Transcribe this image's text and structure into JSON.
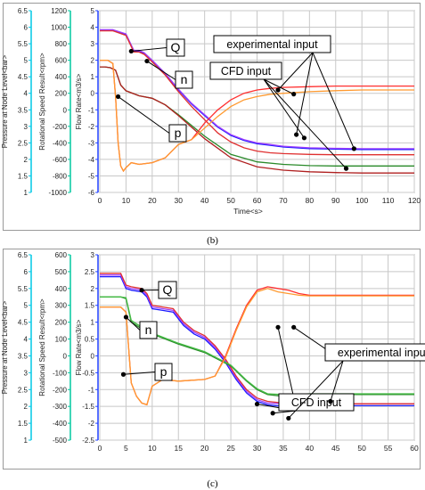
{
  "captions": {
    "b": "(b)",
    "c": "(c)"
  },
  "chart_data": [
    {
      "type": "line",
      "panel": "b",
      "xlabel": "Time<s>",
      "xlim": [
        0,
        120
      ],
      "xticks": [
        0,
        10,
        20,
        30,
        40,
        50,
        60,
        70,
        80,
        90,
        100,
        110,
        120
      ],
      "axes": [
        {
          "label": "Pressure at Node Level<bar>",
          "color": "#00c8e6",
          "range": [
            1,
            6.5
          ],
          "ticks": [
            "6.5",
            "6",
            "5.5",
            "5",
            "4.5",
            "4",
            "3.5",
            "3",
            "2.5",
            "2",
            "1.5",
            "1"
          ]
        },
        {
          "label": "Rotational Speed Result<rpm>",
          "color": "#00c8a0",
          "range": [
            -1000,
            1200
          ],
          "ticks": [
            "1200",
            "1000",
            "800",
            "600",
            "400",
            "200",
            "0",
            "-200",
            "-400",
            "-600",
            "-800",
            "-1000"
          ]
        },
        {
          "label": "Flow Rate<m3/s>",
          "color": "#2040ff",
          "range": [
            -6,
            5
          ],
          "ticks": [
            "5",
            "4",
            "3",
            "2",
            "1",
            "0",
            "-1",
            "-2",
            "-3",
            "-4",
            "-5",
            "-6"
          ]
        }
      ],
      "series": [
        {
          "color": "#1a1aff",
          "axis": 2,
          "x": [
            0,
            5,
            10,
            13,
            15,
            17,
            20,
            25,
            30,
            35,
            40,
            45,
            50,
            55,
            60,
            65,
            70,
            80,
            90,
            100,
            110,
            120
          ],
          "y": [
            3.8,
            3.8,
            3.55,
            2.55,
            2.55,
            2.4,
            1.95,
            1.15,
            0.2,
            -0.65,
            -1.35,
            -2.05,
            -2.55,
            -2.85,
            -3.05,
            -3.15,
            -3.25,
            -3.35,
            -3.38,
            -3.4,
            -3.4,
            -3.4
          ]
        },
        {
          "color": "#a040ff",
          "axis": 2,
          "x": [
            0,
            5,
            10,
            13,
            15,
            17,
            20,
            25,
            30,
            35,
            40,
            45,
            50,
            55,
            60,
            65,
            70,
            80,
            90,
            100,
            110,
            120
          ],
          "y": [
            3.85,
            3.85,
            3.6,
            2.6,
            2.6,
            2.45,
            2.0,
            1.2,
            0.25,
            -0.6,
            -1.3,
            -2.0,
            -2.5,
            -2.8,
            -3.0,
            -3.1,
            -3.2,
            -3.3,
            -3.33,
            -3.35,
            -3.35,
            -3.35
          ]
        },
        {
          "color": "#e03030",
          "axis": 2,
          "x": [
            0,
            5,
            10,
            13,
            15,
            17,
            20,
            25,
            30,
            35,
            40,
            45,
            50,
            55,
            60,
            65,
            70,
            80,
            90,
            100,
            110,
            120
          ],
          "y": [
            3.78,
            3.78,
            3.5,
            2.5,
            2.5,
            2.35,
            1.9,
            1.1,
            0.1,
            -0.8,
            -1.6,
            -2.4,
            -2.95,
            -3.3,
            -3.5,
            -3.6,
            -3.65,
            -3.7,
            -3.72,
            -3.72,
            -3.72,
            -3.72
          ]
        },
        {
          "color": "#2a8a2a",
          "axis": 1,
          "x": [
            0,
            2,
            4,
            6,
            8,
            10,
            15,
            20,
            25,
            30,
            40,
            50,
            60,
            70,
            80,
            90,
            100,
            110,
            120
          ],
          "y": [
            520,
            520,
            510,
            480,
            300,
            230,
            170,
            140,
            60,
            -60,
            -320,
            -540,
            -630,
            -660,
            -675,
            -680,
            -680,
            -680,
            -680
          ]
        },
        {
          "color": "#b02020",
          "axis": 1,
          "x": [
            0,
            2,
            4,
            6,
            8,
            10,
            15,
            20,
            25,
            30,
            40,
            50,
            60,
            70,
            80,
            90,
            100,
            110,
            120
          ],
          "y": [
            520,
            520,
            510,
            480,
            300,
            230,
            170,
            140,
            60,
            -70,
            -350,
            -580,
            -690,
            -730,
            -750,
            -760,
            -765,
            -765,
            -765
          ]
        },
        {
          "color": "#ff3030",
          "axis": 0,
          "x": [
            0,
            3,
            5,
            6,
            7,
            8,
            9,
            10,
            12,
            15,
            20,
            25,
            30,
            35,
            40,
            45,
            50,
            55,
            60,
            65,
            70,
            80,
            90,
            100,
            110,
            120
          ],
          "y": [
            5.0,
            5.0,
            4.9,
            3.9,
            2.5,
            1.8,
            1.65,
            1.75,
            1.9,
            1.85,
            1.9,
            2.05,
            2.45,
            2.6,
            3.1,
            3.5,
            3.8,
            4.0,
            4.1,
            4.15,
            4.18,
            4.2,
            4.22,
            4.22,
            4.22,
            4.22
          ]
        },
        {
          "color": "#ff9a30",
          "axis": 0,
          "x": [
            0,
            3,
            5,
            6,
            7,
            8,
            9,
            10,
            12,
            15,
            20,
            25,
            30,
            35,
            40,
            45,
            50,
            55,
            60,
            65,
            70,
            80,
            90,
            100,
            110,
            120
          ],
          "y": [
            5.0,
            5.0,
            4.9,
            3.9,
            2.5,
            1.8,
            1.65,
            1.75,
            1.9,
            1.85,
            1.9,
            2.05,
            2.45,
            2.6,
            2.95,
            3.3,
            3.6,
            3.8,
            3.9,
            3.97,
            4.0,
            4.05,
            4.08,
            4.1,
            4.1,
            4.1
          ]
        }
      ],
      "annotations": [
        {
          "text": "Q",
          "anchor": [
            12,
            2.55
          ]
        },
        {
          "text": "n",
          "anchor": [
            18,
            1.95
          ]
        },
        {
          "text": "p",
          "anchor": [
            7,
            -0.2
          ]
        },
        {
          "text": "experimental input",
          "points": [
            [
              68,
              0.2
            ],
            [
              75,
              -2.5
            ],
            [
              97,
              -3.35
            ]
          ]
        },
        {
          "text": "CFD input",
          "points": [
            [
              74,
              -0.05
            ],
            [
              78,
              -2.7
            ],
            [
              94,
              -4.55
            ]
          ]
        }
      ]
    },
    {
      "type": "line",
      "panel": "c",
      "xlabel": "",
      "xlim": [
        0,
        60
      ],
      "xticks": [
        0,
        5,
        10,
        15,
        20,
        25,
        30,
        35,
        40,
        45,
        50,
        55,
        60
      ],
      "axes": [
        {
          "label": "Pressure at Node Level<bar>",
          "color": "#00c8e6",
          "range": [
            1,
            6.5
          ],
          "ticks": [
            "6.5",
            "6",
            "5.5",
            "5",
            "4.5",
            "4",
            "3.5",
            "3",
            "2.5",
            "2",
            "1.5",
            "1"
          ]
        },
        {
          "label": "Rotational Speed Result<rpm>",
          "color": "#00c8a0",
          "range": [
            -500,
            600
          ],
          "ticks": [
            "600",
            "500",
            "400",
            "300",
            "200",
            "100",
            "0",
            "-100",
            "-200",
            "-300",
            "-400",
            "-500"
          ]
        },
        {
          "label": "Flow Rate<m3/s>",
          "color": "#2040ff",
          "range": [
            -2.5,
            3
          ],
          "ticks": [
            "3",
            "2.5",
            "2",
            "1.5",
            "1",
            "0.5",
            "0",
            "-0.5",
            "-1",
            "-1.5",
            "-2",
            "-2.5"
          ]
        }
      ],
      "series": [
        {
          "color": "#1a1aff",
          "axis": 2,
          "x": [
            0,
            4,
            5,
            6,
            8,
            9,
            10,
            12,
            14,
            16,
            18,
            20,
            22,
            24,
            26,
            28,
            30,
            32,
            35,
            40,
            45,
            50,
            55,
            60
          ],
          "y": [
            2.35,
            2.35,
            2.0,
            1.95,
            1.9,
            1.75,
            1.4,
            1.35,
            1.3,
            0.9,
            0.65,
            0.5,
            0.2,
            -0.2,
            -0.7,
            -1.1,
            -1.35,
            -1.45,
            -1.5,
            -1.48,
            -1.48,
            -1.48,
            -1.48,
            -1.48
          ]
        },
        {
          "color": "#a040ff",
          "axis": 2,
          "x": [
            0,
            4,
            5,
            6,
            8,
            9,
            10,
            12,
            14,
            16,
            18,
            20,
            22,
            24,
            26,
            28,
            30,
            32,
            35,
            40,
            45,
            50,
            55,
            60
          ],
          "y": [
            2.4,
            2.4,
            2.05,
            2.0,
            1.95,
            1.8,
            1.45,
            1.4,
            1.35,
            0.95,
            0.7,
            0.55,
            0.25,
            -0.15,
            -0.65,
            -1.05,
            -1.3,
            -1.4,
            -1.42,
            -1.42,
            -1.42,
            -1.42,
            -1.42,
            -1.42
          ]
        },
        {
          "color": "#e03030",
          "axis": 2,
          "x": [
            0,
            4,
            5,
            6,
            8,
            9,
            10,
            12,
            14,
            16,
            18,
            20,
            22,
            24,
            26,
            28,
            30,
            32,
            35,
            40,
            45,
            50,
            55,
            60
          ],
          "y": [
            2.45,
            2.45,
            2.1,
            2.05,
            2.0,
            1.85,
            1.5,
            1.45,
            1.4,
            1.0,
            0.75,
            0.6,
            0.3,
            -0.1,
            -0.6,
            -1.0,
            -1.25,
            -1.35,
            -1.4,
            -1.42,
            -1.42,
            -1.42,
            -1.42,
            -1.42
          ]
        },
        {
          "color": "#2a8a2a",
          "axis": 1,
          "x": [
            0,
            4,
            5,
            6,
            8,
            10,
            15,
            20,
            25,
            28,
            30,
            32,
            35,
            40,
            45,
            50,
            55,
            60
          ],
          "y": [
            350,
            350,
            340,
            200,
            160,
            130,
            70,
            20,
            -60,
            -150,
            -200,
            -230,
            -240,
            -230,
            -230,
            -230,
            -230,
            -230
          ]
        },
        {
          "color": "#44bb44",
          "axis": 1,
          "x": [
            0,
            4,
            5,
            6,
            8,
            10,
            15,
            20,
            25,
            28,
            30,
            32,
            35,
            40,
            45,
            50,
            55,
            60
          ],
          "y": [
            350,
            350,
            345,
            210,
            170,
            135,
            75,
            25,
            -55,
            -145,
            -195,
            -225,
            -230,
            -225,
            -225,
            -225,
            -225,
            -225
          ]
        },
        {
          "color": "#ff3030",
          "axis": 0,
          "x": [
            0,
            4,
            5,
            6,
            7,
            8,
            9,
            10,
            12,
            15,
            20,
            22,
            24,
            26,
            28,
            30,
            32,
            34,
            36,
            38,
            40,
            45,
            50,
            55,
            60
          ],
          "y": [
            4.95,
            4.95,
            4.8,
            2.7,
            2.3,
            2.1,
            2.05,
            2.6,
            2.8,
            2.75,
            2.8,
            2.9,
            3.5,
            4.3,
            5.0,
            5.45,
            5.55,
            5.5,
            5.45,
            5.35,
            5.3,
            5.3,
            5.3,
            5.3,
            5.3
          ]
        },
        {
          "color": "#ff9a30",
          "axis": 0,
          "x": [
            0,
            4,
            5,
            6,
            7,
            8,
            9,
            10,
            12,
            15,
            20,
            22,
            24,
            26,
            28,
            30,
            32,
            34,
            36,
            38,
            40,
            45,
            50,
            55,
            60
          ],
          "y": [
            4.95,
            4.95,
            4.8,
            2.7,
            2.3,
            2.1,
            2.05,
            2.6,
            2.8,
            2.75,
            2.8,
            2.9,
            3.45,
            4.25,
            4.95,
            5.4,
            5.5,
            5.4,
            5.35,
            5.3,
            5.28,
            5.28,
            5.28,
            5.28,
            5.28
          ]
        }
      ],
      "annotations": [
        {
          "text": "Q",
          "anchor": [
            8,
            1.95
          ]
        },
        {
          "text": "n",
          "anchor": [
            5,
            1.15
          ]
        },
        {
          "text": "p",
          "anchor": [
            4.5,
            -0.55
          ]
        },
        {
          "text": "CFD input",
          "points": [
            [
              30,
              -1.43
            ],
            [
              34,
              0.85
            ],
            [
              33,
              -1.7
            ]
          ]
        },
        {
          "text": "experimental input",
          "points": [
            [
              37,
              0.85
            ],
            [
              44,
              -1.35
            ],
            [
              36,
              -1.85
            ]
          ]
        }
      ]
    }
  ]
}
